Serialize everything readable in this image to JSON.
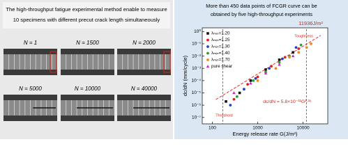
{
  "left_panel": {
    "title_lines": [
      "The high-throughput fatigue experimental method enable to measure",
      "10 specimens with different precut crack length simultaneously"
    ],
    "specimens": [
      "N = 1",
      "N = 1500",
      "N = 2000",
      "N = 5000",
      "N = 10000",
      "N = 40000"
    ]
  },
  "chart_data": {
    "type": "scatter",
    "title_lines": [
      "More than 450 data points of FCGR curve can be",
      "obtained by five high-throughput experiments"
    ],
    "x_label": "Energy release rate G(J/m²)",
    "y_label": "dc/dN (mm/cycle)",
    "xscale": "log",
    "yscale": "log",
    "xlim": [
      60,
      35000
    ],
    "ylim": [
      3e-08,
      2
    ],
    "xticks": [
      100,
      1000,
      10000
    ],
    "yticks": [
      {
        "value": 1,
        "label": "10⁰"
      },
      {
        "value": 0.1,
        "label": "10⁻¹"
      },
      {
        "value": 0.01,
        "label": "10⁻²"
      },
      {
        "value": 0.001,
        "label": "10⁻³"
      },
      {
        "value": 0.0001,
        "label": "10⁻⁴"
      },
      {
        "value": 1e-05,
        "label": "10⁻⁵"
      },
      {
        "value": 1e-06,
        "label": "10⁻⁶"
      },
      {
        "value": 1e-07,
        "label": "10⁻⁷"
      }
    ],
    "series": [
      {
        "name": "λₘᵢₙ=1.20",
        "color": "#111111",
        "marker": "square",
        "x": [
          200,
          400,
          700,
          1500,
          3000,
          6000
        ],
        "values": [
          2e-06,
          1e-05,
          0.0001,
          0.0008,
          0.005,
          0.02
        ]
      },
      {
        "name": "λₘᵢₙ=1.25",
        "color": "#e0201b",
        "marker": "circle",
        "x": [
          300,
          600,
          1000,
          2000,
          4000,
          8000
        ],
        "values": [
          3e-06,
          5e-05,
          0.0002,
          0.0015,
          0.008,
          0.04
        ]
      },
      {
        "name": "λₘᵢₙ=1.30",
        "color": "#1f3fd0",
        "marker": "circle",
        "x": [
          250,
          500,
          900,
          1800,
          3500,
          7000
        ],
        "values": [
          1e-06,
          2e-05,
          0.00015,
          0.001,
          0.006,
          0.05
        ]
      },
      {
        "name": "λₘᵢₙ=1.40",
        "color": "#2a9d3a",
        "marker": "circle",
        "x": [
          350,
          800,
          1500,
          3000,
          5000,
          9000
        ],
        "values": [
          5e-06,
          0.0001,
          0.0005,
          0.003,
          0.01,
          0.08
        ]
      },
      {
        "name": "λₘᵢₙ=1.70",
        "color": "#f08a1c",
        "marker": "circle",
        "x": [
          1000,
          2500,
          5000,
          8000,
          12000,
          15000
        ],
        "values": [
          0.0001,
          0.001,
          0.008,
          0.02,
          0.05,
          0.1
        ]
      },
      {
        "name": "pure shear",
        "color": "#d01fc8",
        "marker": "triangle",
        "x": [
          300,
          700,
          1500,
          3000,
          6000
        ],
        "values": [
          1e-05,
          6e-05,
          0.0004,
          0.002,
          0.01
        ]
      }
    ],
    "fit": {
      "coefficient": 5.8e-11,
      "exponent": 2.26,
      "label": "dc/dN = 5.8×10⁻¹¹G²·²⁶",
      "color": "#e0201b"
    },
    "reference_lines": [
      {
        "value": 170,
        "label": "Threshold"
      },
      {
        "value": 11936,
        "label": "Toughness",
        "value_label": "11936J/m²"
      }
    ]
  }
}
